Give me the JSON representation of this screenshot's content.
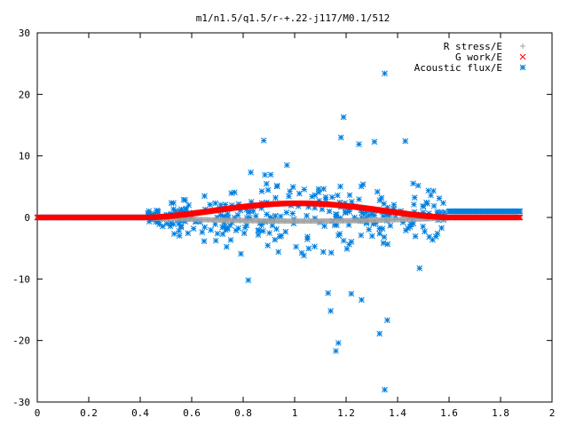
{
  "chart_data": {
    "type": "scatter",
    "title": "m1/n1.5/q1.5/r-+.22-j117/M0.1/512",
    "xlabel": "",
    "ylabel": "",
    "xlim": [
      0,
      2
    ],
    "ylim": [
      -30,
      30
    ],
    "xticks": [
      "0",
      "0.2",
      "0.4",
      "0.6",
      "0.8",
      "1",
      "1.2",
      "1.4",
      "1.6",
      "1.8",
      "2"
    ],
    "yticks": [
      "-30",
      "-20",
      "-10",
      "0",
      "10",
      "20",
      "30"
    ],
    "xtick_values": [
      0,
      0.2,
      0.4,
      0.6,
      0.8,
      1.0,
      1.2,
      1.4,
      1.6,
      1.8,
      2.0
    ],
    "ytick_values": [
      -30,
      -20,
      -10,
      0,
      10,
      20,
      30
    ],
    "grid": false,
    "legend_position": "top-right",
    "series": [
      {
        "name": "R stress/E",
        "marker": "plus",
        "color": "#a0a0a0",
        "x_range": [
          0.0,
          1.88
        ],
        "y_profile": "near zero, dips to about -0.5 between 0.45 and 1.6"
      },
      {
        "name": "G work/E",
        "marker": "cross",
        "color": "#ff0000",
        "x_range": [
          0.0,
          1.88
        ],
        "y_profile": "0 outside 0.43-1.6, rises to about 2.3 near x=1.0"
      },
      {
        "name": "Acoustic flux/E",
        "marker": "star",
        "color": "#0080e0",
        "x_range": [
          0.0,
          1.88
        ],
        "y_profile": "0 below 0.43, 1 above 1.6, widely scattered between"
      }
    ],
    "notable_points": {
      "Acoustic flux/E": [
        [
          1.35,
          23.4
        ],
        [
          1.19,
          16.3
        ],
        [
          1.43,
          12.4
        ],
        [
          0.88,
          12.5
        ],
        [
          1.18,
          13.0
        ],
        [
          1.25,
          11.9
        ],
        [
          1.31,
          12.3
        ],
        [
          0.97,
          8.5
        ],
        [
          1.35,
          -28.0
        ],
        [
          1.36,
          -16.7
        ],
        [
          1.17,
          -20.4
        ],
        [
          1.16,
          -21.7
        ],
        [
          1.33,
          -18.9
        ],
        [
          1.14,
          -15.2
        ],
        [
          1.13,
          -12.3
        ],
        [
          0.82,
          -10.2
        ],
        [
          1.22,
          -12.4
        ],
        [
          1.26,
          -13.4
        ]
      ]
    }
  }
}
